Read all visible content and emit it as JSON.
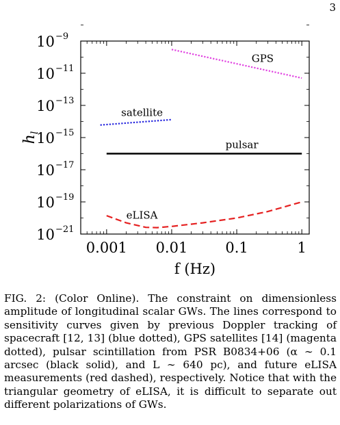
{
  "page_number": "3",
  "chart_data": {
    "type": "line",
    "title": "",
    "xlabel": "f (Hz)",
    "ylabel": "h_l",
    "x_scale": "log",
    "y_scale": "log",
    "xlim": [
      0.0004,
      1.3
    ],
    "ylim": [
      1e-21,
      1e-09
    ],
    "x_ticks": [
      0.001,
      0.01,
      0.1,
      1
    ],
    "x_tick_labels": [
      "0.001",
      "0.01",
      "0.1",
      "1"
    ],
    "y_ticks": [
      1e-21,
      1e-19,
      1e-17,
      1e-15,
      1e-13,
      1e-11,
      1e-09
    ],
    "y_tick_base": "10",
    "y_tick_exponents": [
      "−21",
      "−19",
      "−17",
      "−15",
      "−13",
      "−11",
      "−9"
    ],
    "series": [
      {
        "name": "GPS",
        "color": "#e040e0",
        "style": "dotted",
        "x": [
          0.01,
          1
        ],
        "y": [
          3e-10,
          5e-12
        ]
      },
      {
        "name": "satellite",
        "color": "#2222dd",
        "style": "dotted",
        "x": [
          0.0008,
          0.01
        ],
        "y": [
          6e-15,
          1.3e-14
        ]
      },
      {
        "name": "pulsar",
        "color": "#000000",
        "style": "solid",
        "x": [
          0.001,
          1
        ],
        "y": [
          1e-16,
          1e-16
        ]
      },
      {
        "name": "eLISA",
        "color": "#e52020",
        "style": "dashed",
        "x": [
          0.001,
          0.002,
          0.004,
          0.006,
          0.01,
          0.03,
          0.1,
          0.3,
          1
        ],
        "y": [
          1.4e-20,
          5e-21,
          2.6e-21,
          2.5e-21,
          3e-21,
          5e-21,
          1e-20,
          2.5e-20,
          1e-19
        ]
      }
    ],
    "annotations": [
      {
        "text": "GPS",
        "x": 0.25,
        "y": 5e-11
      },
      {
        "text": "satellite",
        "x": 0.0035,
        "y": 2.2e-14
      },
      {
        "text": "pulsar",
        "x": 0.12,
        "y": 2.2e-16
      },
      {
        "text": "eLISA",
        "x": 0.0035,
        "y": 9e-21
      }
    ]
  },
  "caption": "FIG. 2: (Color Online). The constraint on dimensionless amplitude of longitudinal scalar GWs. The lines correspond to sensitivity curves given by previous Doppler tracking of spacecraft [12, 13] (blue dotted), GPS satellites [14] (magenta dotted), pulsar scintillation from PSR B0834+06 (α ∼ 0.1 arcsec (black solid), and L ∼ 640 pc), and future eLISA measurements (red dashed), respectively. Notice that with the triangular geometry of eLISA, it is difficult to separate out different polarizations of GWs."
}
